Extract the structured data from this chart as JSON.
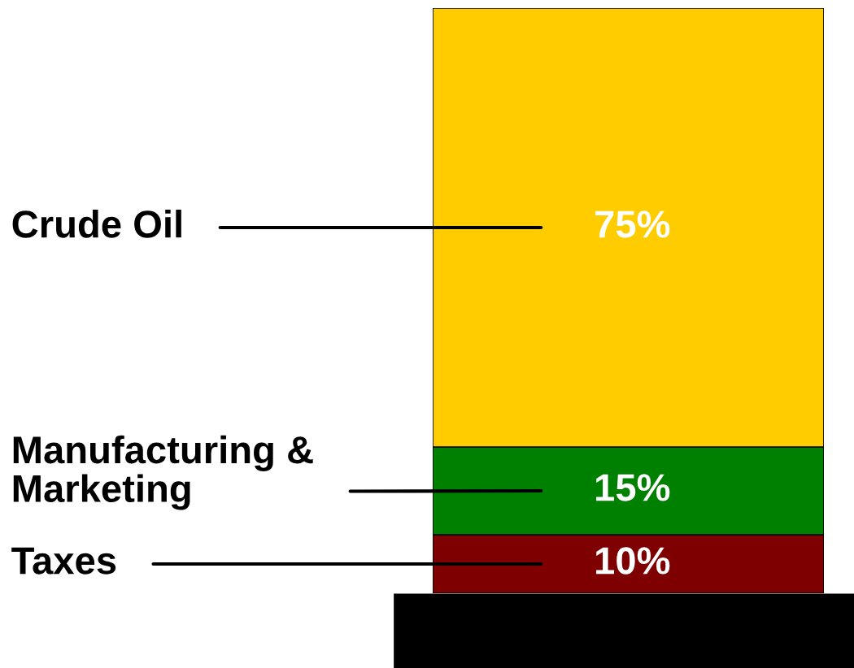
{
  "chart_data": {
    "type": "bar",
    "stacked": true,
    "categories": [
      null
    ],
    "series": [
      {
        "name": "Taxes",
        "color": "#7f0000",
        "values": [
          10
        ],
        "value_labels": [
          "10%"
        ]
      },
      {
        "name": "Manufacturing &\nMarketing",
        "color": "#008000",
        "values": [
          15
        ],
        "value_labels": [
          "15%"
        ]
      },
      {
        "name": "Crude Oil",
        "color": "#ffcc00",
        "values": [
          75
        ],
        "value_labels": [
          "75%"
        ]
      }
    ]
  }
}
